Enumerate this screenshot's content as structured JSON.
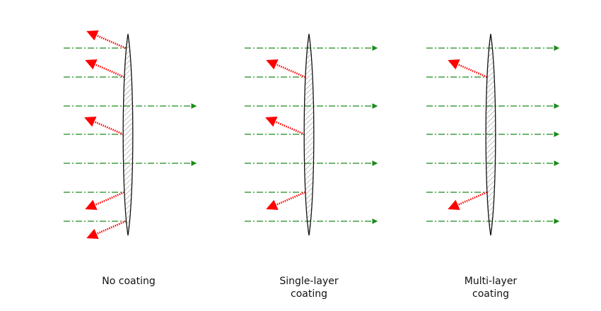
{
  "colors": {
    "transmitted": "#1a8a1a",
    "reflected": "#ff0000",
    "lens_outline": "#111111"
  },
  "panels": [
    {
      "label_lines": [
        "No coating"
      ],
      "rays": [
        "reflect",
        "reflect",
        "pass",
        "reflect",
        "pass",
        "reflect",
        "reflect"
      ]
    },
    {
      "label_lines": [
        "Single-layer",
        "coating"
      ],
      "rays": [
        "pass",
        "reflect",
        "pass",
        "reflect",
        "pass",
        "reflect",
        "pass"
      ]
    },
    {
      "label_lines": [
        "Multi-layer",
        "coating"
      ],
      "rays": [
        "pass",
        "reflect",
        "pass",
        "pass",
        "pass",
        "reflect",
        "pass"
      ]
    }
  ]
}
